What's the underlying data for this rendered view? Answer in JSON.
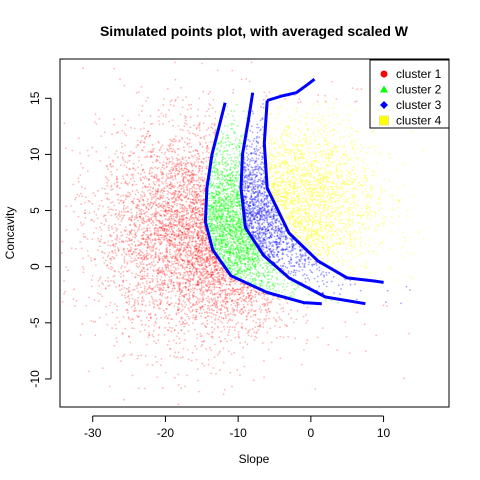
{
  "chart_data": {
    "type": "scatter",
    "title": "Simulated points plot, with averaged scaled W",
    "xlabel": "Slope",
    "ylabel": "Concavity",
    "xlim": [
      -34.5,
      19
    ],
    "ylim": [
      -12.5,
      18.5
    ],
    "x_ticks": [
      -30,
      -20,
      -10,
      0,
      10
    ],
    "y_ticks": [
      -10,
      -5,
      0,
      5,
      10,
      15
    ],
    "grid": false,
    "legend_position": "top-right",
    "series": [
      {
        "name": "cluster 1",
        "color": "#ff0000",
        "marker": "circle"
      },
      {
        "name": "cluster 2",
        "color": "#00ff00",
        "marker": "triangle"
      },
      {
        "name": "cluster 3",
        "color": "#0000ff",
        "marker": "diamond"
      },
      {
        "name": "cluster 4",
        "color": "#ffff00",
        "marker": "square"
      }
    ],
    "boundaries": [
      {
        "color": "#0000ff",
        "points": [
          [
            -11.8,
            14.6
          ],
          [
            -12.5,
            12.8
          ],
          [
            -13.6,
            10
          ],
          [
            -14.3,
            7
          ],
          [
            -14.5,
            4
          ],
          [
            -13.5,
            1.5
          ],
          [
            -11,
            -0.8
          ],
          [
            -6,
            -2.3
          ],
          [
            -1,
            -3.2
          ],
          [
            1.5,
            -3.3
          ]
        ]
      },
      {
        "color": "#0000ff",
        "points": [
          [
            -8,
            15.5
          ],
          [
            -8.6,
            13
          ],
          [
            -9.4,
            10
          ],
          [
            -9.6,
            7
          ],
          [
            -9,
            3.5
          ],
          [
            -6.5,
            1
          ],
          [
            -3,
            -1
          ],
          [
            2,
            -2.7
          ],
          [
            7.5,
            -3.3
          ]
        ]
      },
      {
        "color": "#0000ff",
        "points": [
          [
            -6,
            14.8
          ],
          [
            -6.4,
            11
          ],
          [
            -6,
            7
          ],
          [
            -3,
            3
          ],
          [
            1,
            0.5
          ],
          [
            5,
            -1
          ],
          [
            9,
            -1.3
          ],
          [
            10,
            -1.4
          ]
        ]
      },
      {
        "color": "#0000ff",
        "points": [
          [
            -6,
            14.8
          ],
          [
            -4,
            15.2
          ],
          [
            -2,
            15.5
          ],
          [
            -0.5,
            16.2
          ],
          [
            0.5,
            16.7
          ]
        ]
      }
    ]
  }
}
